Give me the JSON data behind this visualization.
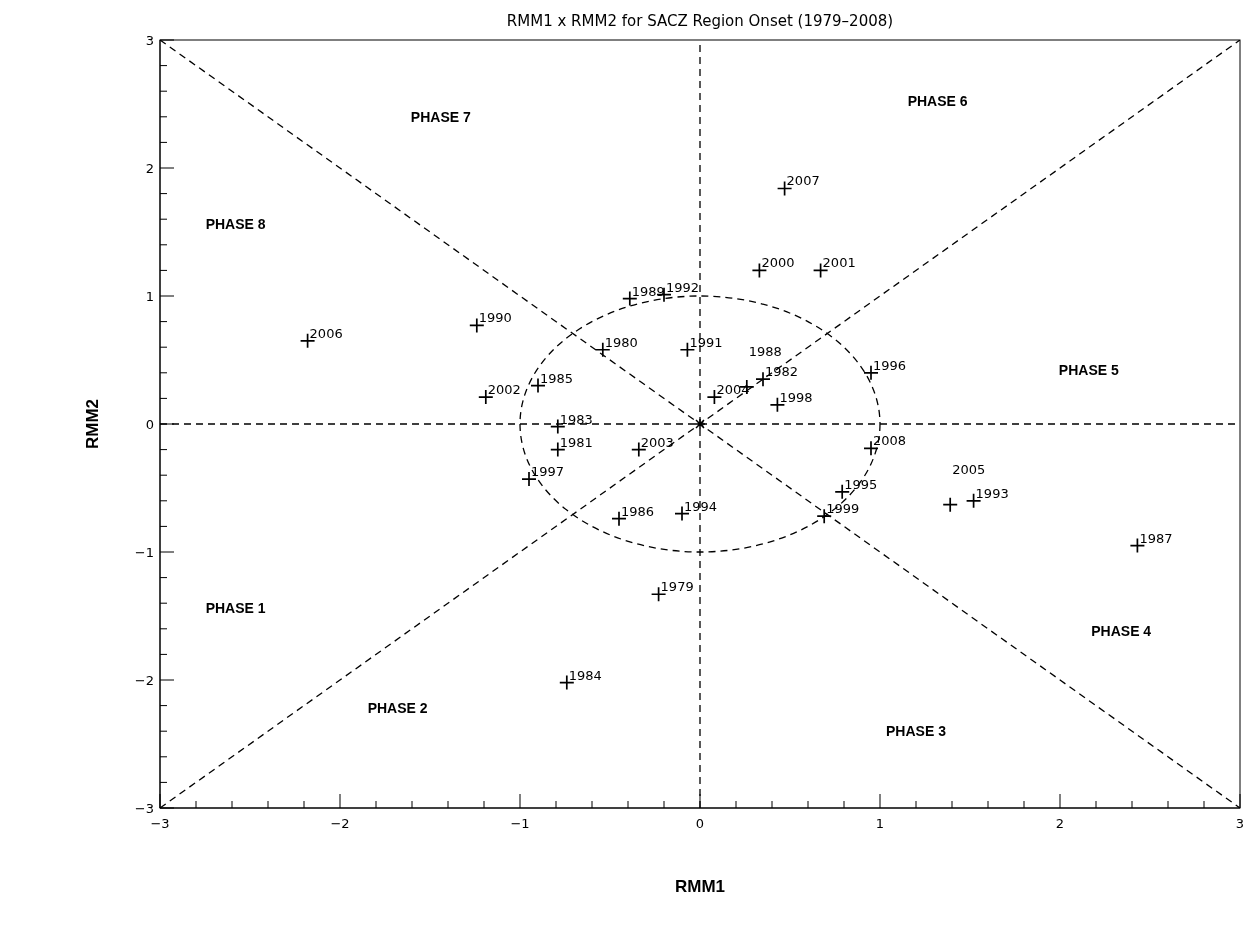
{
  "chart_data": {
    "type": "scatter",
    "title": "RMM1 x RMM2 for SACZ Region Onset (1979–2008)",
    "xlabel": "RMM1",
    "ylabel": "RMM2",
    "xlim": [
      -3,
      3
    ],
    "ylim": [
      -3,
      3
    ],
    "xticks": [
      -3,
      {
        "value": -2.8,
        "label": null
      },
      {
        "value": -2.6,
        "label": null
      },
      {
        "value": -2.4,
        "label": null
      },
      {
        "value": -2.2,
        "label": null
      },
      -2,
      {
        "value": -1.8,
        "label": null
      },
      {
        "value": -1.6,
        "label": null
      },
      {
        "value": -1.4,
        "label": null
      },
      {
        "value": -1.2,
        "label": null
      },
      -1,
      {
        "value": -0.8,
        "label": null
      },
      {
        "value": -0.6,
        "label": null
      },
      {
        "value": -0.4,
        "label": null
      },
      {
        "value": -0.2,
        "label": null
      },
      0,
      {
        "value": 0.2,
        "label": null
      },
      {
        "value": 0.4,
        "label": null
      },
      {
        "value": 0.6,
        "label": null
      },
      {
        "value": 0.8,
        "label": null
      },
      1,
      {
        "value": 1.2,
        "label": null
      },
      {
        "value": 1.4,
        "label": null
      },
      {
        "value": 1.6,
        "label": null
      },
      {
        "value": 1.8,
        "label": null
      },
      2,
      {
        "value": 2.2,
        "label": null
      },
      {
        "value": 2.4,
        "label": null
      },
      {
        "value": 2.6,
        "label": null
      },
      {
        "value": 2.8,
        "label": null
      },
      3
    ],
    "yticks": [
      -3,
      {
        "value": -2.8,
        "label": null
      },
      {
        "value": -2.6,
        "label": null
      },
      {
        "value": -2.4,
        "label": null
      },
      {
        "value": -2.2,
        "label": null
      },
      -2,
      {
        "value": -1.8,
        "label": null
      },
      {
        "value": -1.6,
        "label": null
      },
      {
        "value": -1.4,
        "label": null
      },
      {
        "value": -1.2,
        "label": null
      },
      -1,
      {
        "value": -0.8,
        "label": null
      },
      {
        "value": -0.6,
        "label": null
      },
      {
        "value": -0.4,
        "label": null
      },
      {
        "value": -0.2,
        "label": null
      },
      0,
      {
        "value": 0.2,
        "label": null
      },
      {
        "value": 0.4,
        "label": null
      },
      {
        "value": 0.6,
        "label": null
      },
      {
        "value": 0.8,
        "label": null
      },
      1,
      {
        "value": 1.2,
        "label": null
      },
      {
        "value": 1.4,
        "label": null
      },
      {
        "value": 1.6,
        "label": null
      },
      {
        "value": 1.8,
        "label": null
      },
      2,
      {
        "value": 2.2,
        "label": null
      },
      {
        "value": 2.4,
        "label": null
      },
      {
        "value": 2.6,
        "label": null
      },
      {
        "value": 2.8,
        "label": null
      },
      3
    ],
    "series": [
      {
        "type": "line",
        "line_style": "dashed",
        "marker": "none",
        "color": "#000000",
        "x": [
          -3,
          3
        ],
        "values": [
          0,
          0
        ]
      },
      {
        "type": "line",
        "line_style": "dashed",
        "marker": "none",
        "color": "#000000",
        "x": [
          0,
          0
        ],
        "values": [
          -3,
          3
        ]
      },
      {
        "type": "line",
        "line_style": "dashed",
        "marker": "none",
        "color": "#000000",
        "x": [
          -3,
          3
        ],
        "values": [
          -3,
          3
        ]
      },
      {
        "type": "line",
        "line_style": "dashed",
        "marker": "none",
        "color": "#000000",
        "x": [
          -3,
          3
        ],
        "values": [
          3,
          -3
        ]
      },
      {
        "marker": "cross",
        "color": "#000000",
        "x": [
          -0.23,
          -0.54,
          -0.79,
          0.35,
          -0.79,
          -0.74,
          -0.9,
          -0.45,
          2.43,
          0.26,
          -0.39,
          -1.24,
          -0.07,
          -0.2,
          1.52,
          -0.1,
          0.79,
          0.95,
          -0.95,
          0.43,
          0.69,
          0.33,
          0.67,
          -1.19,
          -0.34,
          0.08,
          1.39,
          -2.18,
          0.47,
          0.95
        ],
        "values": [
          -1.33,
          0.58,
          -0.2,
          0.35,
          -0.02,
          -2.02,
          0.3,
          -0.74,
          -0.95,
          0.29,
          0.98,
          0.77,
          0.58,
          1.01,
          -0.6,
          -0.7,
          -0.53,
          0.4,
          -0.43,
          0.15,
          -0.72,
          1.2,
          1.2,
          0.21,
          -0.2,
          0.21,
          -0.63,
          0.65,
          1.84,
          -0.19
        ]
      }
    ],
    "annotations": [
      "PHASE 1",
      "PHASE 2",
      "PHASE 3",
      "PHASE 4",
      "PHASE 5",
      "PHASE 6",
      "PHASE 7",
      "PHASE 8",
      {
        "text": "1979",
        "x": -0.23,
        "y": -1.33
      },
      {
        "text": "1980",
        "x": -0.54,
        "y": 0.58
      },
      {
        "text": "1981",
        "x": -0.79,
        "y": -0.2
      },
      {
        "text": "1982",
        "x": 0.35,
        "y": 0.35
      },
      {
        "text": "1983",
        "x": -0.79,
        "y": -0.02
      },
      {
        "text": "1984",
        "x": -0.74,
        "y": -2.02
      },
      {
        "text": "1985",
        "x": -0.9,
        "y": 0.3
      },
      {
        "text": "1986",
        "x": -0.45,
        "y": -0.74
      },
      {
        "text": "1987",
        "x": 2.43,
        "y": -0.95
      },
      {
        "text": "1988",
        "x": 0.26,
        "y": 0.29
      },
      {
        "text": "1989",
        "x": -0.39,
        "y": 0.98
      },
      {
        "text": "1990",
        "x": -1.24,
        "y": 0.77
      },
      {
        "text": "1991",
        "x": -0.07,
        "y": 0.58
      },
      {
        "text": "1992",
        "x": -0.2,
        "y": 1.01
      },
      {
        "text": "1993",
        "x": 1.52,
        "y": -0.6
      },
      {
        "text": "1994",
        "x": -0.1,
        "y": -0.7
      },
      {
        "text": "1995",
        "x": 0.79,
        "y": -0.53
      },
      {
        "text": "1996",
        "x": 0.95,
        "y": 0.4
      },
      {
        "text": "1997",
        "x": -0.95,
        "y": -0.43
      },
      {
        "text": "1998",
        "x": 0.43,
        "y": 0.15
      },
      {
        "text": "1999",
        "x": 0.69,
        "y": -0.72
      },
      {
        "text": "2000",
        "x": 0.33,
        "y": 1.2
      },
      {
        "text": "2001",
        "x": 0.67,
        "y": 1.2
      },
      {
        "text": "2002",
        "x": -1.19,
        "y": 0.21
      },
      {
        "text": "2003",
        "x": -0.34,
        "y": -0.2
      },
      {
        "text": "2004",
        "x": 0.08,
        "y": 0.21
      },
      {
        "text": "2005",
        "x": 1.39,
        "y": -0.63
      },
      {
        "text": "2006",
        "x": -2.18,
        "y": 0.65
      },
      {
        "text": "2007",
        "x": 0.47,
        "y": 1.84
      },
      {
        "text": "2008",
        "x": 0.95,
        "y": -0.19
      }
    ]
  }
}
